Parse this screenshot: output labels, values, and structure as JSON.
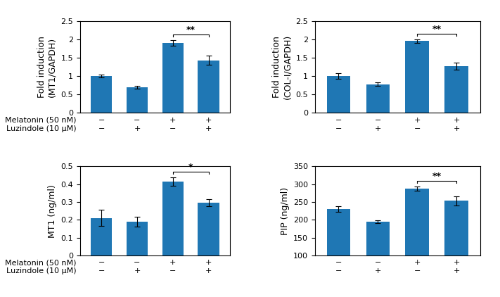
{
  "chart_data": [
    {
      "type": "bar",
      "ylabel": "Fold induction\n(MT1/GAPDH)",
      "categories": [
        "−\n−",
        "−\n+",
        "+\n−",
        "+\n+"
      ],
      "values": [
        1.0,
        0.7,
        1.9,
        1.43
      ],
      "errors": [
        0.03,
        0.04,
        0.08,
        0.13
      ],
      "ylim": [
        0,
        2.5
      ],
      "yticks": [
        0,
        0.5,
        1,
        1.5,
        2,
        2.5
      ],
      "annotations": [
        {
          "x1": 2,
          "x2": 3,
          "text": "**"
        }
      ],
      "row_labels": [
        "Melatonin (50 nM)",
        "Luzindole (10 μM)"
      ]
    },
    {
      "type": "bar",
      "ylabel": "Fold induction\n(COL-I/GAPDH)",
      "categories": [
        "−\n−",
        "−\n+",
        "+\n−",
        "+\n+"
      ],
      "values": [
        1.0,
        0.78,
        1.95,
        1.27
      ],
      "errors": [
        0.08,
        0.05,
        0.05,
        0.1
      ],
      "ylim": [
        0,
        2.5
      ],
      "yticks": [
        0,
        0.5,
        1,
        1.5,
        2,
        2.5
      ],
      "annotations": [
        {
          "x1": 2,
          "x2": 3,
          "text": "**"
        }
      ]
    },
    {
      "type": "bar",
      "ylabel": "MT1 (ng/ml)",
      "categories": [
        "−\n−",
        "−\n+",
        "+\n−",
        "+\n+"
      ],
      "values": [
        0.21,
        0.19,
        0.415,
        0.295
      ],
      "errors": [
        0.045,
        0.028,
        0.025,
        0.02
      ],
      "ylim": [
        0,
        0.5
      ],
      "yticks": [
        0,
        0.1,
        0.2,
        0.3,
        0.4,
        0.5
      ],
      "annotations": [
        {
          "x1": 2,
          "x2": 3,
          "text": "*"
        }
      ],
      "row_labels": [
        "Melatonin (50 nM)",
        "Luzindole (10 μM)"
      ]
    },
    {
      "type": "bar",
      "ylabel": "PIP (ng/ml)",
      "categories": [
        "−\n−",
        "−\n+",
        "+\n−",
        "+\n+"
      ],
      "values": [
        230,
        195,
        288,
        253
      ],
      "errors": [
        8,
        4,
        6,
        12
      ],
      "ylim": [
        100,
        350
      ],
      "yticks": [
        100,
        150,
        200,
        250,
        300,
        350
      ],
      "annotations": [
        {
          "x1": 2,
          "x2": 3,
          "text": "**"
        }
      ]
    }
  ]
}
